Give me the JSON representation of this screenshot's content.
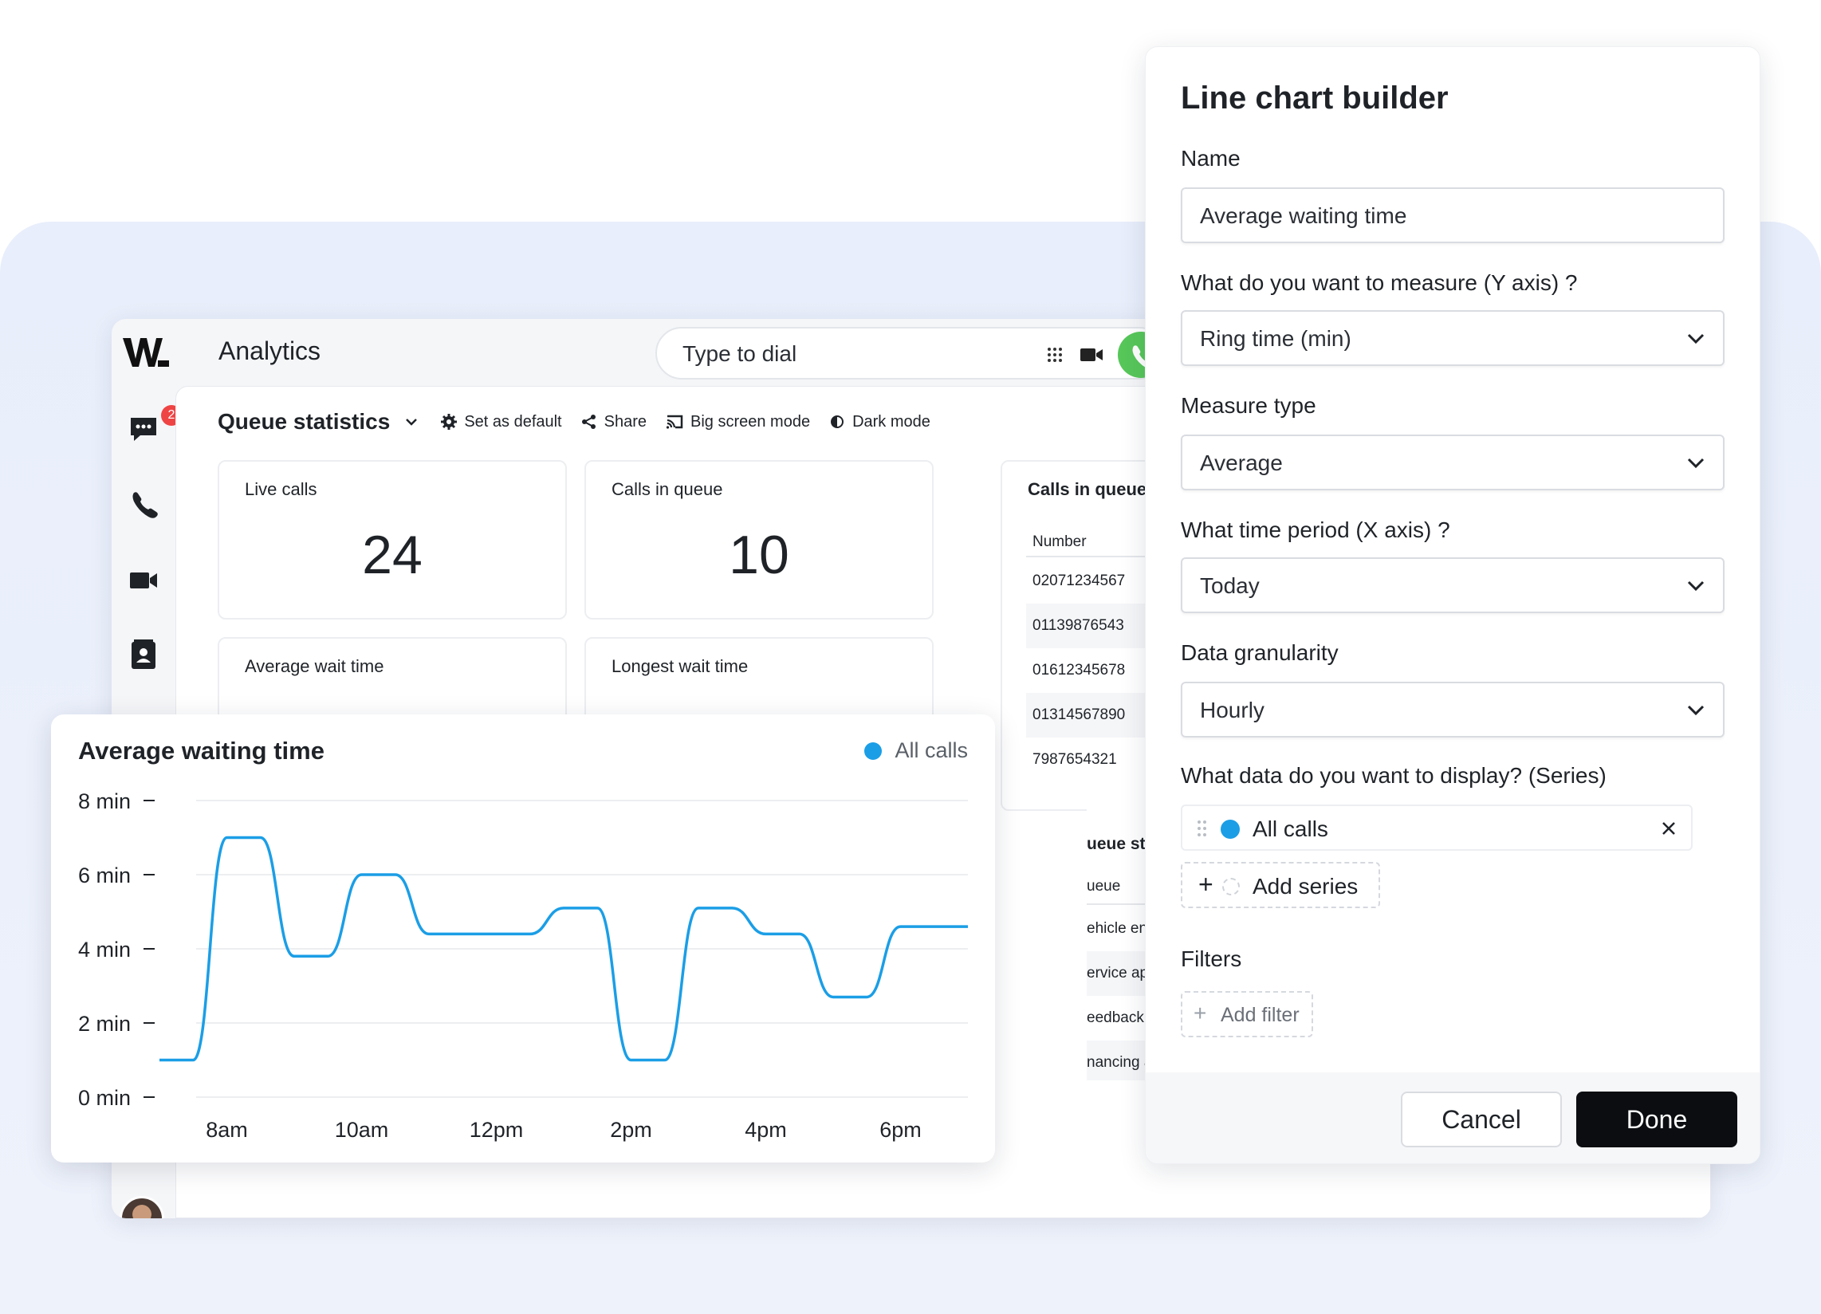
{
  "app": {
    "title": "Analytics",
    "dial_placeholder": "Type to dial",
    "chat_badge": "2"
  },
  "toolbar": {
    "title": "Queue statistics",
    "set_default": "Set as default",
    "share": "Share",
    "big_screen": "Big screen mode",
    "dark_mode": "Dark mode"
  },
  "cards": {
    "live_calls_label": "Live calls",
    "live_calls_value": "24",
    "calls_in_queue_label": "Calls in queue",
    "calls_in_queue_value": "10",
    "avg_wait_label": "Average wait time",
    "longest_wait_label": "Longest wait time"
  },
  "queue_table": {
    "title": "Calls in queue",
    "column": "Number",
    "rows": [
      "02071234567",
      "01139876543",
      "01612345678",
      "01314567890",
      "7987654321"
    ]
  },
  "queue_stats": {
    "title": "ueue statistics",
    "column": "ueue",
    "rows": [
      "ehicle enquiry",
      "ervice appointment",
      "eedback and survey",
      "nancing and lease"
    ]
  },
  "chart": {
    "title": "Average waiting time",
    "legend": "All calls"
  },
  "chart_data": {
    "type": "line",
    "title": "Average waiting time",
    "xlabel": "",
    "ylabel": "",
    "x_ticks": [
      "8am",
      "10am",
      "12pm",
      "2pm",
      "4pm",
      "6pm"
    ],
    "y_ticks": [
      "8 min",
      "6 min",
      "4 min",
      "2 min",
      "0 min"
    ],
    "ylim": [
      0,
      8
    ],
    "xlim": [
      7.0,
      19.0
    ],
    "grid": true,
    "legend_position": "top-right",
    "series": [
      {
        "name": "All calls",
        "color": "#1b9ee6",
        "x": [
          7.0,
          7.5,
          8.0,
          8.5,
          9.0,
          9.5,
          10.0,
          10.5,
          11.0,
          11.5,
          12.0,
          12.5,
          13.0,
          13.5,
          14.0,
          14.5,
          15.0,
          15.5,
          16.0,
          16.5,
          17.0,
          17.5,
          18.0,
          18.5,
          19.0
        ],
        "values": [
          1.0,
          1.0,
          7.0,
          7.0,
          3.8,
          3.8,
          6.0,
          6.0,
          4.4,
          4.4,
          4.4,
          4.4,
          5.1,
          5.1,
          1.0,
          1.0,
          5.1,
          5.1,
          4.4,
          4.4,
          2.7,
          2.7,
          4.6,
          4.6,
          4.6
        ]
      }
    ]
  },
  "builder": {
    "title": "Line chart builder",
    "name_label": "Name",
    "name_value": "Average waiting time",
    "y_label": "What do you want to measure (Y axis) ?",
    "y_value": "Ring time (min)",
    "measure_label": "Measure type",
    "measure_value": "Average",
    "x_label": "What time period (X axis) ?",
    "x_value": "Today",
    "granularity_label": "Data granularity",
    "granularity_value": "Hourly",
    "series_label": "What data do you want to display? (Series)",
    "series_item": "All calls",
    "add_series": "Add series",
    "filters_label": "Filters",
    "add_filter": "Add filter",
    "cancel": "Cancel",
    "done": "Done"
  }
}
